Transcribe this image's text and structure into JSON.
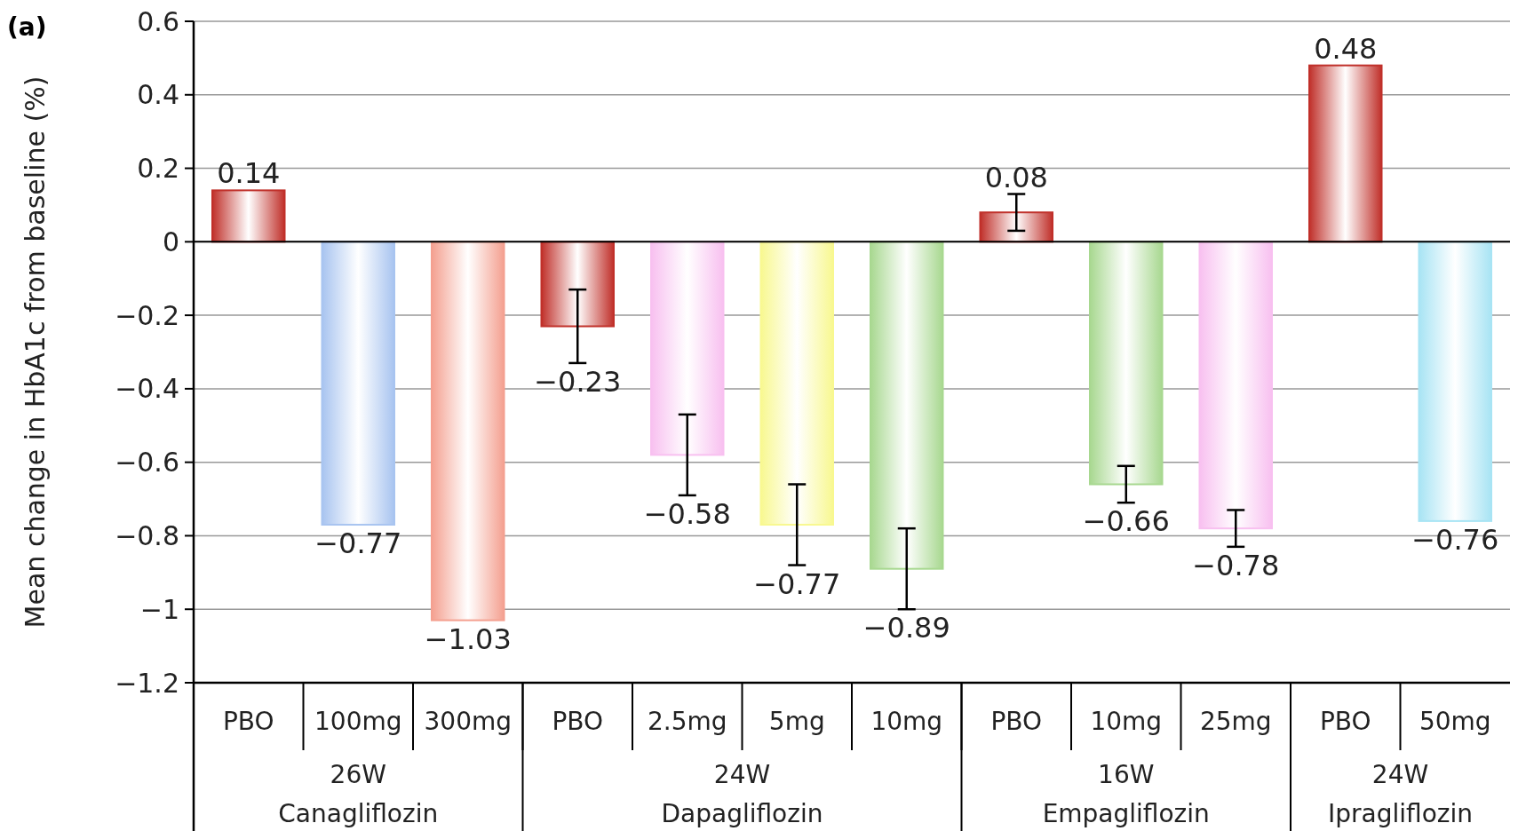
{
  "chart_data": {
    "type": "bar",
    "title": "(a)",
    "ylabel": "Mean change in HbA1c from baseline (%)",
    "categories": [
      "PBO",
      "100mg",
      "300mg",
      "PBO",
      "2.5mg",
      "5mg",
      "10mg",
      "PBO",
      "10mg",
      "25mg",
      "PBO",
      "50mg"
    ],
    "values": [
      0.14,
      -0.77,
      -1.03,
      -0.23,
      -0.58,
      -0.77,
      -0.89,
      0.08,
      -0.66,
      -0.78,
      0.48,
      -0.76
    ],
    "errors": [
      null,
      null,
      null,
      0.1,
      0.11,
      0.11,
      0.11,
      0.05,
      0.05,
      0.05,
      null,
      null
    ],
    "colors": [
      "#c0302a",
      "#a8c4f0",
      "#f4a090",
      "#c0302a",
      "#f8c0f0",
      "#f8f890",
      "#a8d890",
      "#c0302a",
      "#a8d890",
      "#f8c0f0",
      "#c0302a",
      "#a8e4f4"
    ],
    "data_labels": true,
    "ylim": [
      -1.2,
      0.6
    ],
    "yticks": [
      -1.2,
      -1,
      -0.8,
      -0.6,
      -0.4,
      -0.2,
      0,
      0.2,
      0.4,
      0.6
    ],
    "grid": "y",
    "annotations": [
      "26W",
      "Canagliflozin",
      "24W",
      "Dapagliflozin",
      "16W",
      "Empagliflozin",
      "24W",
      "Ipragliflozin"
    ]
  }
}
